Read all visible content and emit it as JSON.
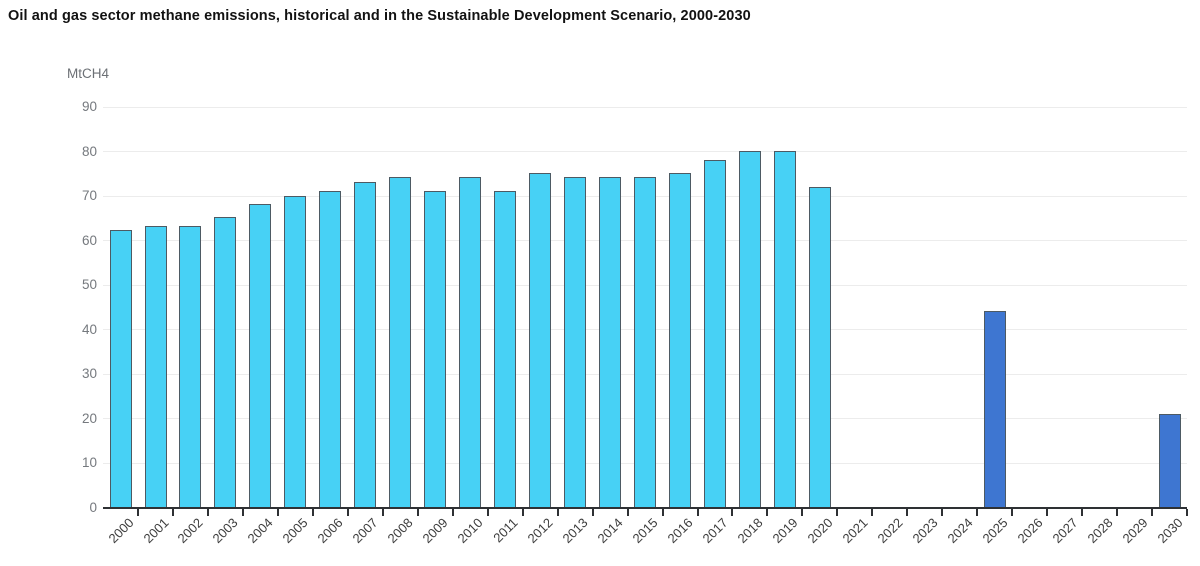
{
  "page": {
    "background": "#ffffff"
  },
  "chart_data": {
    "type": "bar",
    "title": "Oil and gas sector methane emissions, historical and in the Sustainable Development Scenario, 2000-2030",
    "ylabel": "MtCH4",
    "xlabel": "",
    "ylim": [
      0,
      90
    ],
    "ytick_step": 10,
    "yticks": [
      0,
      10,
      20,
      30,
      40,
      50,
      60,
      70,
      80,
      90
    ],
    "grid": "horizontal-only",
    "legend": "none",
    "categories": [
      "2000",
      "2001",
      "2002",
      "2003",
      "2004",
      "2005",
      "2006",
      "2007",
      "2008",
      "2009",
      "2010",
      "2011",
      "2012",
      "2013",
      "2014",
      "2015",
      "2016",
      "2017",
      "2018",
      "2019",
      "2020",
      "2021",
      "2022",
      "2023",
      "2024",
      "2025",
      "2026",
      "2027",
      "2028",
      "2029",
      "2030"
    ],
    "series": [
      {
        "name": "Historical",
        "color": "#47d1f5",
        "values": [
          62.3,
          63.2,
          63.2,
          65.3,
          68.2,
          70.1,
          71.2,
          73.1,
          74.2,
          71.2,
          74.2,
          71.1,
          75.2,
          74.2,
          74.2,
          74.2,
          75.2,
          78.1,
          80.2,
          80.2,
          72.1,
          null,
          null,
          null,
          null,
          null,
          null,
          null,
          null,
          null,
          null
        ]
      },
      {
        "name": "Sustainable Development Scenario",
        "color": "#3e76d1",
        "values": [
          null,
          null,
          null,
          null,
          null,
          null,
          null,
          null,
          null,
          null,
          null,
          null,
          null,
          null,
          null,
          null,
          null,
          null,
          null,
          null,
          null,
          null,
          null,
          null,
          null,
          44.2,
          null,
          null,
          null,
          null,
          21.2
        ]
      }
    ]
  }
}
